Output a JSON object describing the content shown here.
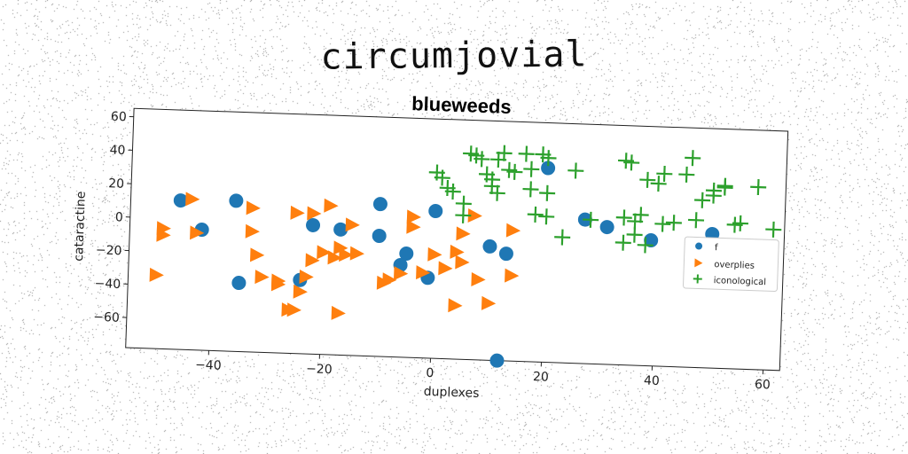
{
  "page": {
    "heading": "circumjovial"
  },
  "colors": {
    "series1": "#1f77b4",
    "series2": "#ff7f0e",
    "series3": "#2ca02c"
  },
  "chart_data": {
    "type": "scatter",
    "title": "blueweeds",
    "xlabel": "duplexes",
    "ylabel": "cataractine",
    "xlim": [
      -55,
      63
    ],
    "ylim": [
      -78,
      65
    ],
    "xticks": [
      -40,
      -20,
      0,
      20,
      40,
      60
    ],
    "yticks": [
      -60,
      -40,
      -20,
      0,
      20,
      40,
      60
    ],
    "legend_position": "right",
    "grid": false,
    "series": [
      {
        "name": "f",
        "marker": "circle",
        "color": "#1f77b4",
        "points": [
          [
            -46,
            11
          ],
          [
            -42,
            -6
          ],
          [
            -36,
            12
          ],
          [
            -35,
            -37
          ],
          [
            -24,
            -34
          ],
          [
            -22,
            -1
          ],
          [
            -17,
            -3
          ],
          [
            -10,
            13
          ],
          [
            -10,
            -6
          ],
          [
            -5,
            -16
          ],
          [
            -6,
            -23
          ],
          [
            0,
            10
          ],
          [
            -1,
            -30
          ],
          [
            10,
            -10
          ],
          [
            13,
            -14
          ],
          [
            12,
            -78
          ],
          [
            20,
            38
          ],
          [
            27,
            8
          ],
          [
            31,
            4
          ],
          [
            39,
            -3
          ],
          [
            50,
            2
          ]
        ]
      },
      {
        "name": "overplies",
        "marker": "triangle-right",
        "color": "#ff7f0e",
        "points": [
          [
            -44,
            12
          ],
          [
            -50,
            -34
          ],
          [
            -49,
            -6
          ],
          [
            -49,
            -10
          ],
          [
            -43,
            -8
          ],
          [
            -33,
            8
          ],
          [
            -33,
            -6
          ],
          [
            -32,
            -20
          ],
          [
            -31,
            -33
          ],
          [
            -28,
            -37
          ],
          [
            -28,
            -35
          ],
          [
            -26,
            -52
          ],
          [
            -25,
            -52
          ],
          [
            -25,
            6
          ],
          [
            -24,
            -41
          ],
          [
            -23,
            -32
          ],
          [
            -22,
            6
          ],
          [
            -22,
            -22
          ],
          [
            -20,
            -17
          ],
          [
            -19,
            11
          ],
          [
            -18,
            -20
          ],
          [
            -17,
            -14
          ],
          [
            -16,
            -18
          ],
          [
            -15,
            0
          ],
          [
            -14,
            -17
          ],
          [
            -17,
            -53
          ],
          [
            -9,
            -34
          ],
          [
            -8,
            -32
          ],
          [
            -6,
            -28
          ],
          [
            -4,
            6
          ],
          [
            -4,
            0
          ],
          [
            -2,
            -27
          ],
          [
            0,
            -16
          ],
          [
            2,
            -24
          ],
          [
            4,
            -14
          ],
          [
            4,
            -46
          ],
          [
            5,
            -20
          ],
          [
            5,
            -3
          ],
          [
            7,
            8
          ],
          [
            8,
            -30
          ],
          [
            10,
            -44
          ],
          [
            14,
            0
          ],
          [
            14,
            -27
          ]
        ]
      },
      {
        "name": "iconological",
        "marker": "plus",
        "color": "#2ca02c",
        "points": [
          [
            0,
            33
          ],
          [
            1,
            30
          ],
          [
            2,
            24
          ],
          [
            3,
            22
          ],
          [
            5,
            15
          ],
          [
            5,
            8
          ],
          [
            6,
            45
          ],
          [
            7,
            44
          ],
          [
            8,
            42
          ],
          [
            9,
            33
          ],
          [
            10,
            30
          ],
          [
            10,
            26
          ],
          [
            11,
            22
          ],
          [
            11,
            42
          ],
          [
            12,
            46
          ],
          [
            13,
            36
          ],
          [
            14,
            35
          ],
          [
            16,
            46
          ],
          [
            17,
            37
          ],
          [
            17,
            25
          ],
          [
            18,
            10
          ],
          [
            19,
            46
          ],
          [
            20,
            44
          ],
          [
            20,
            23
          ],
          [
            20,
            9
          ],
          [
            23,
            -3
          ],
          [
            25,
            37
          ],
          [
            28,
            8
          ],
          [
            34,
            10
          ],
          [
            34,
            -5
          ],
          [
            34,
            44
          ],
          [
            35,
            43
          ],
          [
            36,
            0
          ],
          [
            36,
            8
          ],
          [
            37,
            12
          ],
          [
            38,
            33
          ],
          [
            38,
            -6
          ],
          [
            40,
            31
          ],
          [
            41,
            37
          ],
          [
            41,
            7
          ],
          [
            43,
            8
          ],
          [
            45,
            37
          ],
          [
            46,
            47
          ],
          [
            47,
            10
          ],
          [
            48,
            22
          ],
          [
            50,
            25
          ],
          [
            50,
            28
          ],
          [
            52,
            30
          ],
          [
            52,
            31
          ],
          [
            54,
            8
          ],
          [
            55,
            9
          ],
          [
            58,
            31
          ],
          [
            61,
            6
          ]
        ]
      }
    ]
  }
}
